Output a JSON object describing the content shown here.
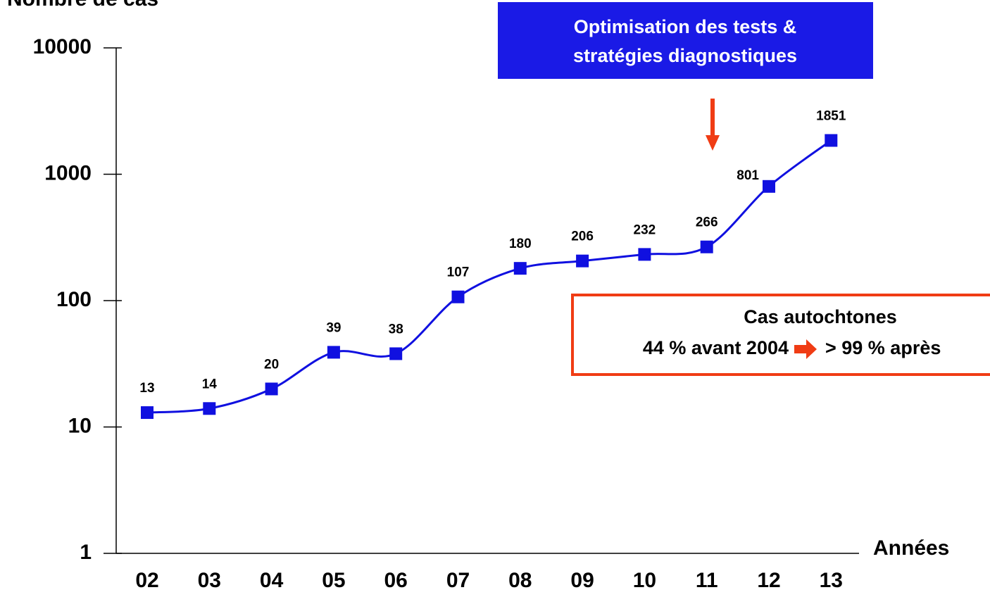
{
  "chart_data": {
    "type": "line",
    "y_axis_label": "Nombre de cas",
    "x_axis_label": "Années",
    "categories": [
      "02",
      "03",
      "04",
      "05",
      "06",
      "07",
      "08",
      "09",
      "10",
      "11",
      "12",
      "13"
    ],
    "series": [
      {
        "name": "Nombre de cas",
        "color": "#1010e0",
        "values": [
          13,
          14,
          20,
          39,
          38,
          107,
          180,
          206,
          232,
          266,
          801,
          1851
        ]
      }
    ],
    "yscale": "log",
    "ylim": [
      1,
      10000
    ],
    "yticks": [
      1,
      10,
      100,
      1000,
      10000
    ],
    "annotations": [
      {
        "lines": [
          "Optimisation des tests &",
          "stratégies diagnostiques"
        ]
      },
      {
        "lines": [
          "Cas autochtones",
          "44 % avant 2004",
          "> 99 % après"
        ]
      }
    ]
  }
}
